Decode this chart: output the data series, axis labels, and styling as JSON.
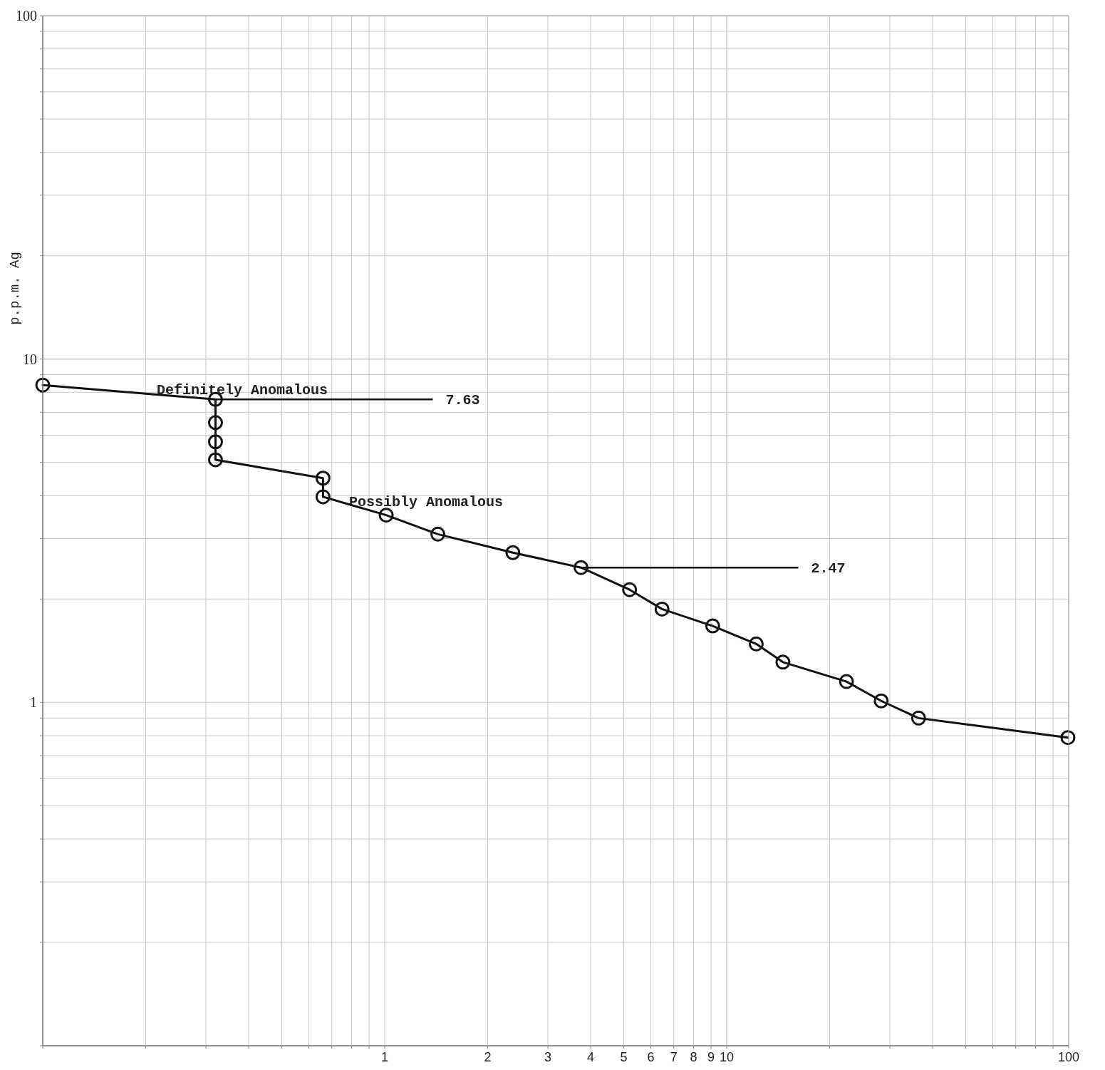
{
  "chart_data": {
    "type": "line",
    "ylabel": "p.p.m. Ag",
    "log": "xy",
    "grid": true,
    "marker": "circle",
    "line_style": "solid",
    "x": [
      0.1,
      0.32,
      0.32,
      0.32,
      0.32,
      0.66,
      0.66,
      1.01,
      1.43,
      2.37,
      3.75,
      5.2,
      6.47,
      9.1,
      12.2,
      14.6,
      22.4,
      28.3,
      36.4,
      99.5
    ],
    "series": [
      {
        "color": "#111111",
        "values": [
          8.4,
          7.63,
          6.53,
          5.74,
          5.09,
          4.5,
          3.97,
          3.51,
          3.09,
          2.73,
          2.47,
          2.13,
          1.87,
          1.67,
          1.48,
          1.31,
          1.15,
          1.01,
          0.9,
          0.79
        ]
      }
    ],
    "xlim": [
      0.1,
      100
    ],
    "ylim": [
      0.1,
      100
    ],
    "xticks": [
      {
        "value": 0.1,
        "label": null
      },
      {
        "value": 0.2,
        "label": null
      },
      {
        "value": 0.3,
        "label": null
      },
      {
        "value": 0.4,
        "label": null
      },
      {
        "value": 0.5,
        "label": null
      },
      {
        "value": 0.6,
        "label": null
      },
      {
        "value": 0.7,
        "label": null
      },
      {
        "value": 0.8,
        "label": null
      },
      {
        "value": 0.9,
        "label": null
      },
      1,
      2,
      3,
      4,
      5,
      6,
      7,
      8,
      9,
      10,
      {
        "value": 20,
        "label": null
      },
      {
        "value": 30,
        "label": null
      },
      {
        "value": 40,
        "label": null
      },
      {
        "value": 50,
        "label": null
      },
      {
        "value": 60,
        "label": null
      },
      {
        "value": 70,
        "label": null
      },
      {
        "value": 80,
        "label": null
      },
      {
        "value": 90,
        "label": null
      },
      100
    ],
    "yticks": [
      {
        "value": 0.1,
        "label": null
      },
      {
        "value": 0.2,
        "label": null
      },
      {
        "value": 0.3,
        "label": null
      },
      {
        "value": 0.4,
        "label": null
      },
      {
        "value": 0.5,
        "label": null
      },
      {
        "value": 0.6,
        "label": null
      },
      {
        "value": 0.7,
        "label": null
      },
      {
        "value": 0.8,
        "label": null
      },
      {
        "value": 0.9,
        "label": null
      },
      1,
      {
        "value": 2,
        "label": null
      },
      {
        "value": 3,
        "label": null
      },
      {
        "value": 4,
        "label": null
      },
      {
        "value": 5,
        "label": null
      },
      {
        "value": 6,
        "label": null
      },
      {
        "value": 7,
        "label": null
      },
      {
        "value": 8,
        "label": null
      },
      {
        "value": 9,
        "label": null
      },
      10,
      {
        "value": 20,
        "label": null
      },
      {
        "value": 30,
        "label": null
      },
      {
        "value": 40,
        "label": null
      },
      {
        "value": 50,
        "label": null
      },
      {
        "value": 60,
        "label": null
      },
      {
        "value": 70,
        "label": null
      },
      {
        "value": 80,
        "label": null
      },
      {
        "value": 90,
        "label": null
      },
      100
    ],
    "ref_lines": [
      {
        "axis": "y",
        "value": 7.63,
        "label": "7.63"
      },
      {
        "axis": "y",
        "value": 2.47,
        "label": "2.47"
      }
    ],
    "annotations": [
      "Definitely Anomalous",
      "Possibly Anomalous"
    ]
  }
}
